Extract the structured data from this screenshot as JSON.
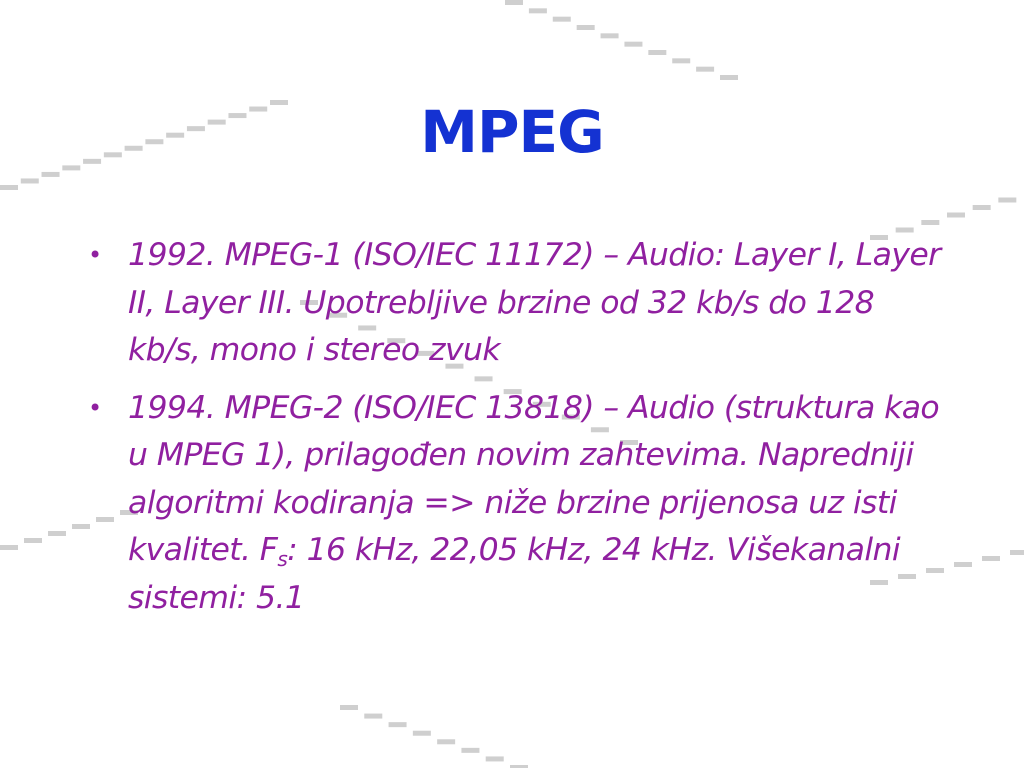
{
  "slide": {
    "title": "MPEG",
    "bullet_symbol": "•",
    "bullets": [
      {
        "text": "1992. MPEG-1 (ISO/IEC 11172) – Audio: Layer I, Layer II, Layer III. Upotrebljive brzine od 32 kb/s do 128 kb/s, mono i stereo zvuk"
      },
      {
        "text_before": "1994. MPEG-2 (ISO/IEC 13818) – Audio (struktura kao u MPEG 1), prilagođen novim zahtevima. Napredniji algoritmi kodiranja => niže brzine prijenosa uz isti kvalitet. F",
        "subscript": "s",
        "text_after": ": 16 kHz, 22,05 kHz, 24 kHz. Višekanalni sistemi: 5.1"
      }
    ],
    "colors": {
      "title": "#1432d2",
      "body": "#9020a0",
      "decoration": "#c8c8c8"
    }
  }
}
